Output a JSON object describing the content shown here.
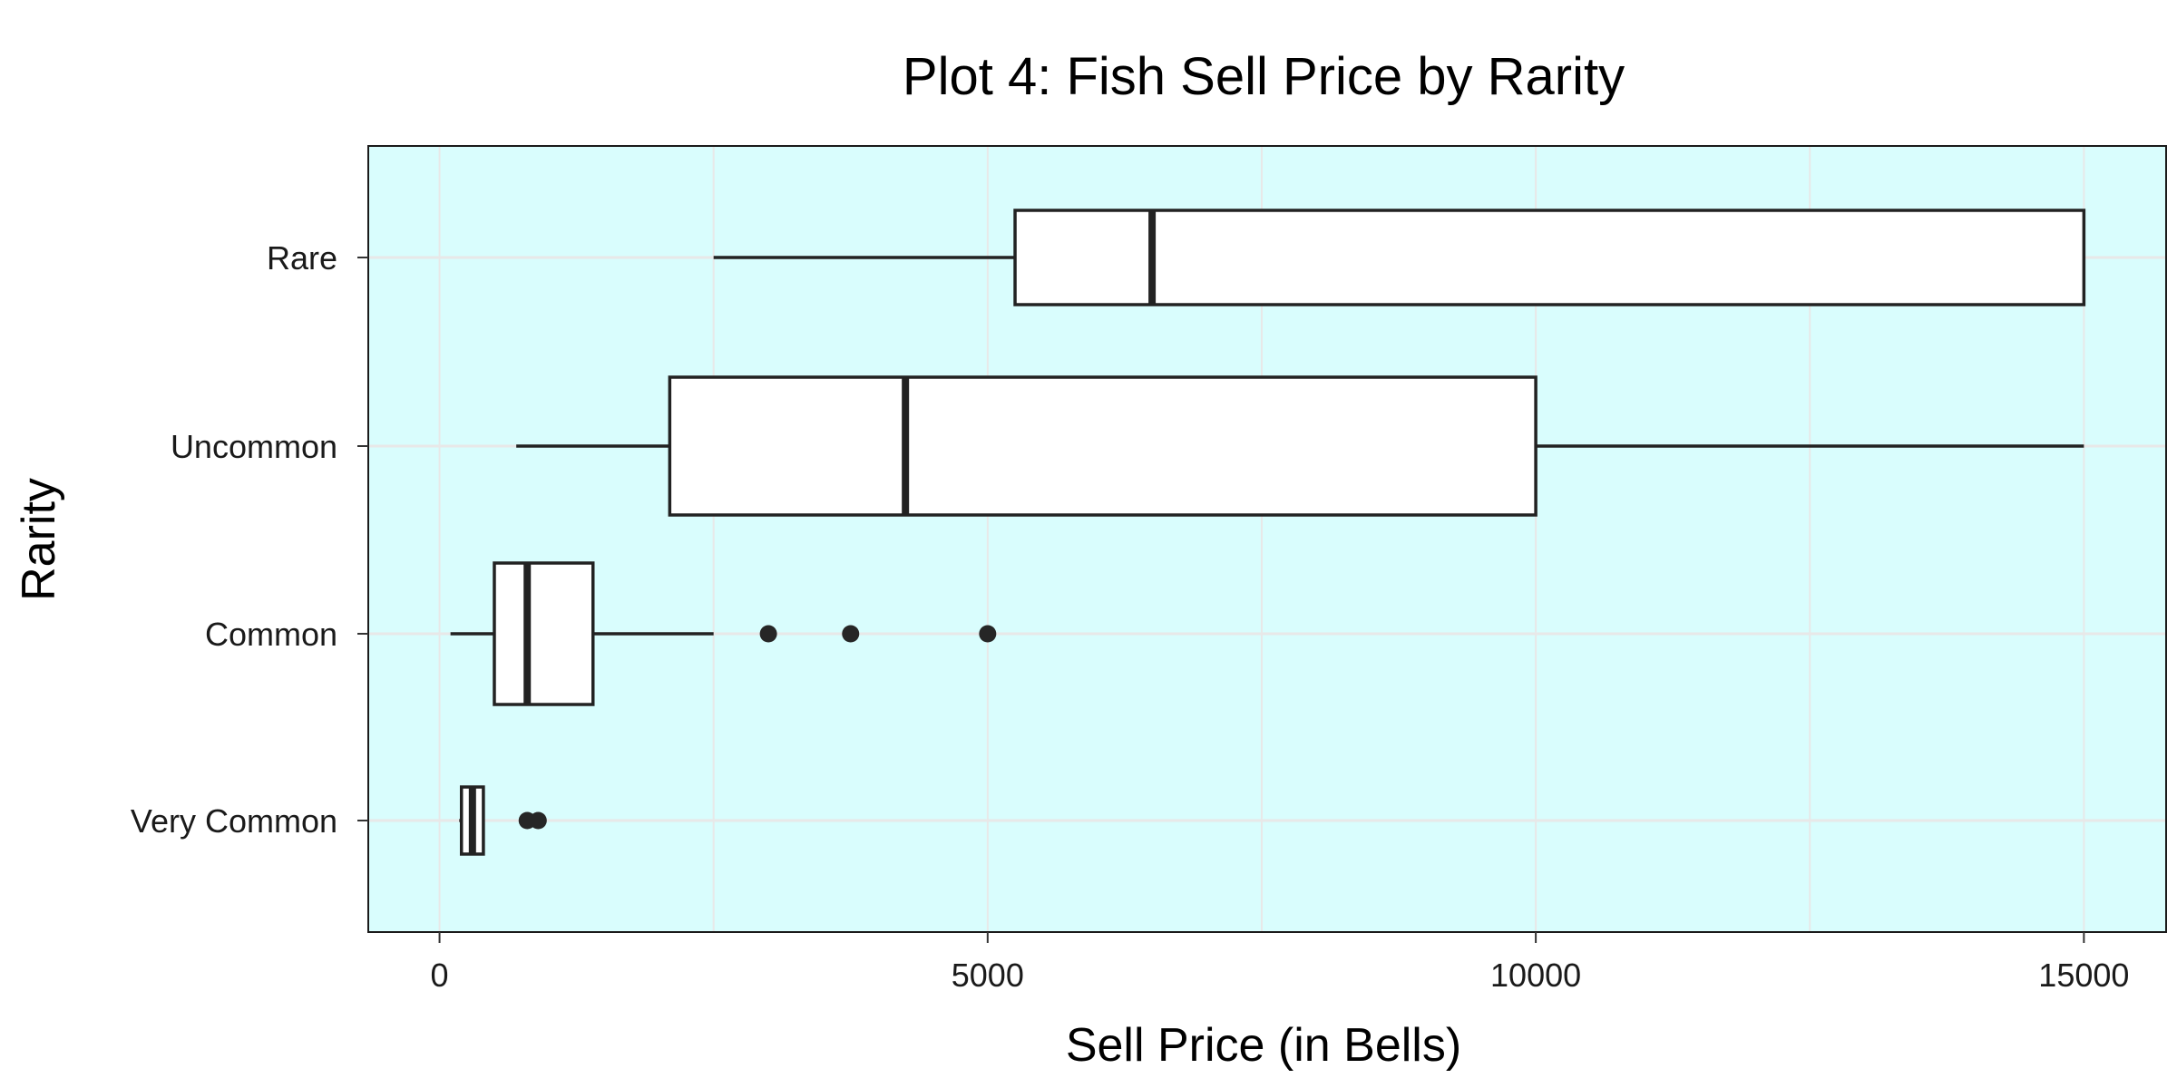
{
  "chart_data": {
    "type": "boxplot",
    "orientation": "horizontal",
    "title": "Plot 4: Fish Sell Price by Rarity",
    "xlabel": "Sell Price (in Bells)",
    "ylabel": "Rarity",
    "xlim": [
      -650,
      15750
    ],
    "x_ticks": [
      0,
      5000,
      10000,
      15000
    ],
    "x_tick_labels": [
      "0",
      "5000",
      "10000",
      "15000"
    ],
    "x_minor_gridlines": [
      2500,
      7500,
      12500
    ],
    "grid": true,
    "categories": [
      "Very Common",
      "Common",
      "Uncommon",
      "Rare"
    ],
    "boxes": [
      {
        "category": "Very Common",
        "whisker_low": 180,
        "q1": 200,
        "median": 300,
        "q3": 400,
        "whisker_high": 400,
        "outliers": [
          800,
          900
        ]
      },
      {
        "category": "Common",
        "whisker_low": 100,
        "q1": 500,
        "median": 800,
        "q3": 1400,
        "whisker_high": 2500,
        "outliers": [
          3000,
          3750,
          5000
        ]
      },
      {
        "category": "Uncommon",
        "whisker_low": 700,
        "q1": 2100,
        "median": 4250,
        "q3": 10000,
        "whisker_high": 15000,
        "outliers": []
      },
      {
        "category": "Rare",
        "whisker_low": 2500,
        "q1": 5250,
        "median": 6500,
        "q3": 15000,
        "whisker_high": 15000,
        "outliers": []
      }
    ],
    "colors": {
      "panel_background": "#d9fdfd",
      "grid": "#e8e8e8",
      "box_fill": "#ffffff",
      "box_stroke": "#222222",
      "outlier": "#262626"
    }
  }
}
